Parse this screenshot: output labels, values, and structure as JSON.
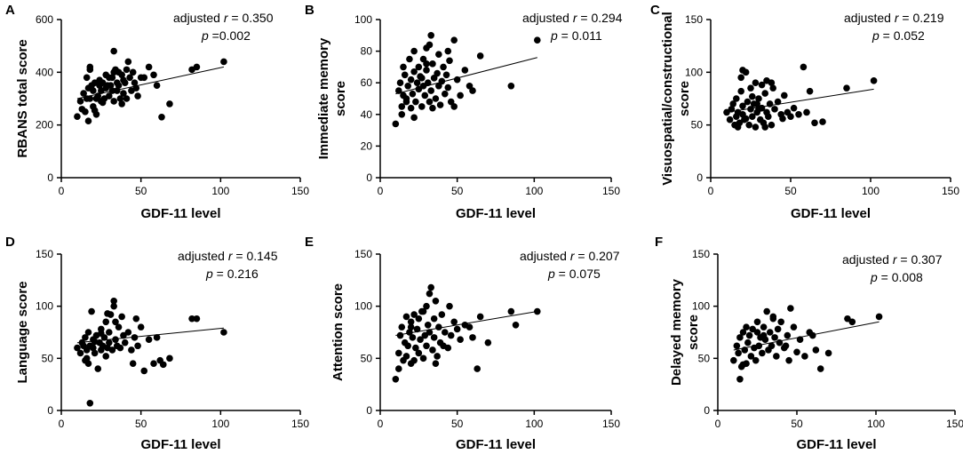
{
  "figure_title": "",
  "chart_data": [
    {
      "type": "scatter",
      "panel": "A",
      "title": "",
      "xlabel": "GDF-11 level",
      "ylabel": "RBANS total  score",
      "xlim": [
        0,
        150
      ],
      "ylim": [
        0,
        600
      ],
      "xticks": [
        0,
        50,
        100,
        150
      ],
      "yticks": [
        0,
        200,
        400,
        600
      ],
      "stat_prefix": "adjusted ",
      "stat_r_symbol": "r",
      "stat_r_value": " = 0.350",
      "stat_p_symbol": "p",
      "stat_p_value": " =0.002",
      "fit": {
        "x": [
          10,
          102
        ],
        "y": [
          300,
          420
        ]
      },
      "points": {
        "x": [
          10,
          12,
          13,
          14,
          15,
          16,
          16,
          17,
          18,
          18,
          19,
          20,
          20,
          21,
          22,
          22,
          23,
          24,
          24,
          25,
          25,
          26,
          27,
          28,
          28,
          29,
          30,
          30,
          31,
          32,
          32,
          33,
          33,
          34,
          35,
          35,
          36,
          37,
          38,
          38,
          39,
          40,
          41,
          42,
          43,
          44,
          45,
          46,
          47,
          48,
          50,
          52,
          55,
          58,
          60,
          63,
          68,
          82,
          85,
          102,
          33,
          36,
          39,
          41,
          26,
          18,
          21,
          17
        ],
        "y": [
          232,
          290,
          260,
          320,
          250,
          300,
          380,
          340,
          300,
          410,
          350,
          270,
          330,
          360,
          300,
          240,
          310,
          350,
          370,
          290,
          330,
          360,
          300,
          340,
          390,
          350,
          380,
          310,
          350,
          330,
          380,
          400,
          290,
          410,
          360,
          330,
          350,
          300,
          390,
          280,
          320,
          360,
          410,
          440,
          380,
          330,
          400,
          360,
          340,
          310,
          380,
          380,
          420,
          390,
          350,
          230,
          280,
          410,
          420,
          440,
          480,
          400,
          370,
          300,
          285,
          420,
          255,
          215
        ]
      }
    },
    {
      "type": "scatter",
      "panel": "B",
      "title": "",
      "xlabel": "GDF-11 level",
      "ylabel": "Immediate memory\nscore",
      "xlim": [
        0,
        150
      ],
      "ylim": [
        0,
        100
      ],
      "xticks": [
        0,
        50,
        100,
        150
      ],
      "yticks": [
        0,
        20,
        40,
        60,
        80,
        100
      ],
      "stat_prefix": "adjusted ",
      "stat_r_symbol": "r",
      "stat_r_value": " = 0.294",
      "stat_p_symbol": "p",
      "stat_p_value": " = 0.011",
      "fit": {
        "x": [
          10,
          102
        ],
        "y": [
          53,
          76
        ]
      },
      "points": {
        "x": [
          10,
          12,
          13,
          14,
          15,
          15,
          16,
          17,
          18,
          19,
          20,
          20,
          21,
          22,
          22,
          23,
          24,
          25,
          25,
          26,
          27,
          28,
          28,
          29,
          30,
          30,
          31,
          32,
          33,
          33,
          34,
          35,
          36,
          37,
          38,
          38,
          39,
          40,
          41,
          42,
          43,
          44,
          45,
          46,
          48,
          50,
          52,
          55,
          58,
          60,
          65,
          85,
          102,
          32,
          34,
          27,
          22,
          17,
          14,
          44,
          48,
          30
        ],
        "y": [
          34,
          55,
          60,
          45,
          52,
          70,
          65,
          48,
          58,
          75,
          62,
          44,
          53,
          67,
          80,
          48,
          60,
          56,
          70,
          64,
          45,
          58,
          75,
          52,
          68,
          82,
          60,
          48,
          90,
          55,
          72,
          63,
          50,
          66,
          58,
          78,
          46,
          61,
          70,
          53,
          65,
          57,
          74,
          48,
          87,
          62,
          52,
          68,
          58,
          55,
          77,
          58,
          87,
          84,
          44,
          63,
          38,
          50,
          40,
          80,
          45,
          72
        ]
      }
    },
    {
      "type": "scatter",
      "panel": "C",
      "title": "",
      "xlabel": "GDF-11 level",
      "ylabel": "Visuospatial/constructional\nscore",
      "xlim": [
        0,
        150
      ],
      "ylim": [
        0,
        150
      ],
      "xticks": [
        0,
        50,
        100,
        150
      ],
      "yticks": [
        0,
        50,
        100,
        150
      ],
      "stat_prefix": "adjusted ",
      "stat_r_symbol": "r",
      "stat_r_value": " = 0.219",
      "stat_p_symbol": "p",
      "stat_p_value": " = 0.052",
      "fit": {
        "x": [
          10,
          102
        ],
        "y": [
          62,
          84
        ]
      },
      "points": {
        "x": [
          10,
          12,
          13,
          14,
          15,
          16,
          16,
          17,
          18,
          19,
          20,
          20,
          21,
          22,
          23,
          24,
          25,
          25,
          26,
          27,
          28,
          28,
          29,
          30,
          31,
          32,
          32,
          33,
          34,
          35,
          35,
          36,
          37,
          38,
          39,
          40,
          42,
          44,
          45,
          46,
          48,
          50,
          52,
          55,
          58,
          60,
          62,
          65,
          70,
          85,
          102,
          20,
          22,
          26,
          30,
          34,
          38,
          17,
          19,
          29
        ],
        "y": [
          62,
          55,
          65,
          70,
          50,
          58,
          75,
          62,
          52,
          82,
          68,
          60,
          55,
          100,
          72,
          50,
          65,
          85,
          58,
          70,
          90,
          48,
          62,
          75,
          55,
          88,
          66,
          52,
          80,
          62,
          92,
          58,
          70,
          50,
          85,
          65,
          72,
          60,
          56,
          78,
          62,
          58,
          66,
          60,
          105,
          62,
          82,
          52,
          53,
          85,
          92,
          102,
          56,
          77,
          65,
          48,
          90,
          48,
          95,
          70
        ]
      }
    },
    {
      "type": "scatter",
      "panel": "D",
      "title": "",
      "xlabel": "GDF-11 level",
      "ylabel": "Language score",
      "xlim": [
        0,
        150
      ],
      "ylim": [
        0,
        150
      ],
      "xticks": [
        0,
        50,
        100,
        150
      ],
      "yticks": [
        0,
        50,
        100,
        150
      ],
      "stat_prefix": "adjusted ",
      "stat_r_symbol": "r",
      "stat_r_value": " = 0.145",
      "stat_p_symbol": "p",
      "stat_p_value": " = 0.216",
      "fit": {
        "x": [
          10,
          102
        ],
        "y": [
          65,
          79
        ]
      },
      "points": {
        "x": [
          10,
          12,
          13,
          14,
          15,
          16,
          16,
          17,
          17,
          18,
          19,
          20,
          20,
          21,
          22,
          23,
          24,
          25,
          25,
          26,
          27,
          28,
          28,
          29,
          30,
          30,
          31,
          32,
          33,
          34,
          34,
          35,
          36,
          37,
          38,
          39,
          40,
          42,
          44,
          45,
          46,
          48,
          50,
          52,
          55,
          58,
          60,
          62,
          64,
          68,
          82,
          85,
          102,
          18,
          21,
          33,
          25,
          15,
          47,
          29
        ],
        "y": [
          60,
          55,
          65,
          62,
          70,
          50,
          58,
          75,
          45,
          62,
          95,
          60,
          68,
          55,
          72,
          40,
          65,
          58,
          78,
          62,
          70,
          52,
          85,
          60,
          75,
          65,
          92,
          58,
          100,
          68,
          85,
          62,
          80,
          60,
          90,
          72,
          65,
          75,
          58,
          45,
          70,
          62,
          80,
          38,
          68,
          45,
          70,
          48,
          44,
          50,
          88,
          88,
          75,
          7,
          66,
          105,
          74,
          48,
          88,
          93
        ]
      }
    },
    {
      "type": "scatter",
      "panel": "E",
      "title": "",
      "xlabel": "GDF-11 level",
      "ylabel": "Attention score",
      "xlim": [
        0,
        150
      ],
      "ylim": [
        0,
        150
      ],
      "xticks": [
        0,
        50,
        100,
        150
      ],
      "yticks": [
        0,
        50,
        100,
        150
      ],
      "stat_prefix": "adjusted ",
      "stat_r_symbol": "r",
      "stat_r_value": " = 0.207",
      "stat_p_symbol": "p",
      "stat_p_value": " = 0.075",
      "fit": {
        "x": [
          10,
          102
        ],
        "y": [
          72,
          95
        ]
      },
      "points": {
        "x": [
          10,
          12,
          13,
          14,
          15,
          16,
          17,
          18,
          19,
          20,
          20,
          21,
          22,
          23,
          24,
          25,
          25,
          26,
          27,
          28,
          29,
          30,
          30,
          31,
          32,
          33,
          34,
          35,
          35,
          36,
          37,
          38,
          39,
          40,
          42,
          44,
          45,
          46,
          48,
          50,
          52,
          55,
          58,
          60,
          63,
          65,
          70,
          85,
          88,
          102,
          12,
          17,
          22,
          32,
          36,
          28,
          41,
          20
        ],
        "y": [
          30,
          55,
          72,
          80,
          48,
          65,
          90,
          62,
          75,
          85,
          45,
          70,
          92,
          60,
          78,
          55,
          88,
          68,
          95,
          50,
          72,
          100,
          62,
          82,
          75,
          118,
          58,
          88,
          70,
          105,
          52,
          80,
          65,
          92,
          75,
          60,
          100,
          72,
          85,
          78,
          68,
          82,
          80,
          70,
          40,
          90,
          65,
          95,
          82,
          95,
          40,
          52,
          48,
          112,
          45,
          95,
          62,
          80
        ]
      }
    },
    {
      "type": "scatter",
      "panel": "F",
      "title": "",
      "xlabel": "GDF-11 level",
      "ylabel": "Delayed memory\nscore",
      "xlim": [
        0,
        150
      ],
      "ylim": [
        0,
        150
      ],
      "xticks": [
        0,
        50,
        100,
        150
      ],
      "yticks": [
        0,
        50,
        100,
        150
      ],
      "stat_prefix": "adjusted ",
      "stat_r_symbol": "r",
      "stat_r_value": " = 0.307",
      "stat_p_symbol": "p",
      "stat_p_value": " = 0.008",
      "fit": {
        "x": [
          10,
          102
        ],
        "y": [
          58,
          85
        ]
      },
      "points": {
        "x": [
          10,
          12,
          13,
          14,
          15,
          16,
          17,
          18,
          18,
          19,
          20,
          21,
          22,
          23,
          24,
          25,
          25,
          26,
          27,
          28,
          29,
          30,
          31,
          32,
          33,
          34,
          35,
          36,
          37,
          38,
          39,
          40,
          42,
          44,
          45,
          46,
          48,
          50,
          52,
          55,
          58,
          60,
          62,
          65,
          70,
          82,
          85,
          102,
          14,
          16,
          29,
          35,
          43
        ],
        "y": [
          48,
          62,
          55,
          70,
          42,
          75,
          58,
          80,
          45,
          65,
          72,
          52,
          78,
          60,
          48,
          75,
          85,
          62,
          70,
          55,
          80,
          68,
          95,
          58,
          75,
          62,
          90,
          70,
          52,
          78,
          65,
          85,
          60,
          72,
          48,
          98,
          80,
          56,
          68,
          52,
          75,
          72,
          58,
          40,
          55,
          88,
          85,
          90,
          30,
          44,
          72,
          88,
          62
        ]
      }
    }
  ]
}
